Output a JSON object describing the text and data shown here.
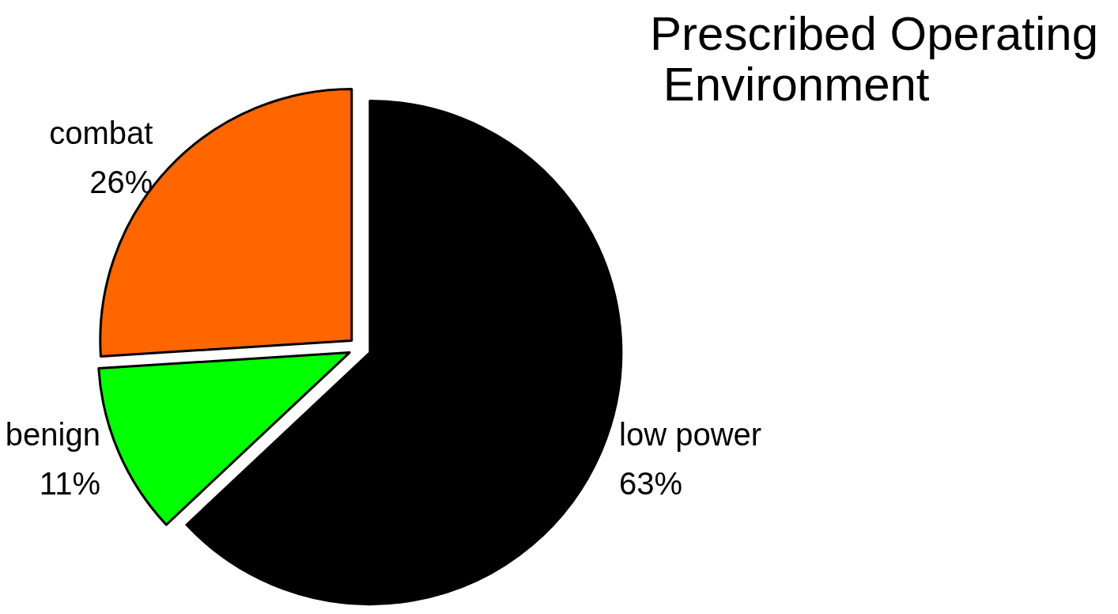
{
  "chart_data": {
    "type": "pie",
    "title": "Prescribed Operating\n Environment",
    "categories": [
      "low power",
      "benign",
      "combat"
    ],
    "values": [
      63,
      11,
      26
    ],
    "colors": [
      "#000000",
      "#00ff00",
      "#ff6600"
    ],
    "value_labels": [
      "63%",
      "11%",
      "26%"
    ],
    "legend": false
  }
}
